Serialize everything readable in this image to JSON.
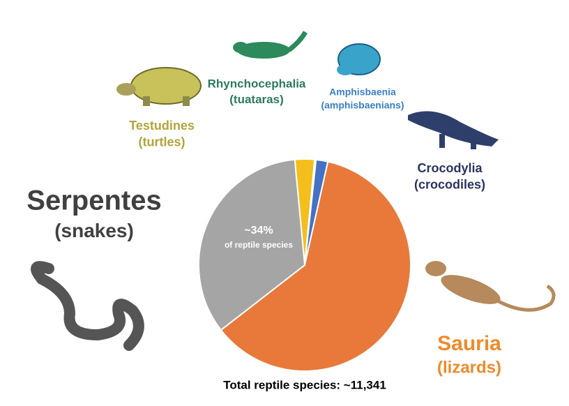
{
  "chart_data": {
    "type": "pie",
    "categories": [
      "Testudines",
      "Rhynchocephalia",
      "Crocodylia",
      "Amphisbaenia",
      "Sauria",
      "Serpentes"
    ],
    "category_notes": [
      "(turtles)",
      "(tuataras)",
      "(crocodiles)",
      "(amphisbaenians)",
      "(lizards)",
      "(snakes)"
    ],
    "values": [
      3,
      0.01,
      0.2,
      1.8,
      61,
      34
    ],
    "value_labels": [
      null,
      null,
      null,
      null,
      null,
      "~34%"
    ],
    "colors": [
      "#f4bf1c",
      "#2e8b57",
      "#1f2f5c",
      "#4472c4",
      "#e8793a",
      "#a5a5a5"
    ],
    "annotation": "of reptile species",
    "footer": "Total reptile species: ~11,341"
  }
}
